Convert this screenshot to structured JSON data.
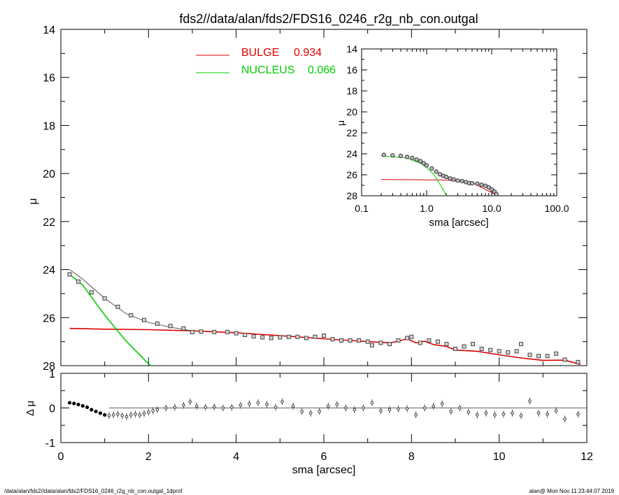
{
  "title": "fds2//data/alan/fds2/FDS16_0246_r2g_nb_con.outgal",
  "footer": {
    "left": "/data/alan/fds2//data/alan/fds2/FDS16_0246_r2g_nb_con.outgal_1dprof",
    "right": "alan@  Mon Nov 11 23:44:07 2019"
  },
  "colors": {
    "bulge": "#dd0000",
    "nucleus": "#00cc00",
    "total": "#555555",
    "data": "#444444"
  },
  "chart_data": [
    {
      "type": "line",
      "panel": "main",
      "xlabel": "sma [arcsec]",
      "ylabel": "μ",
      "xlim": [
        0,
        12
      ],
      "ylim": [
        28,
        14
      ],
      "y_inverted": true,
      "xticks": [
        "0",
        "2",
        "4",
        "6",
        "8",
        "10",
        "12"
      ],
      "yticks": [
        "14",
        "16",
        "18",
        "20",
        "22",
        "24",
        "26",
        "28"
      ],
      "legend": {
        "placement": "top-center",
        "entries": [
          {
            "label": "BULGE",
            "value": "0.934",
            "color": "#dd0000"
          },
          {
            "label": "NUCLEUS",
            "value": "0.066",
            "color": "#00cc00"
          }
        ]
      },
      "series": [
        {
          "name": "BULGE",
          "color": "#dd0000",
          "x": [
            0.2,
            1,
            2,
            3,
            4,
            5,
            6,
            7,
            7.5,
            7.7,
            7.9,
            8.1,
            8.3,
            8.5,
            8.8,
            9,
            9.5,
            10,
            10.5,
            11,
            11.5,
            11.85
          ],
          "y": [
            26.45,
            26.48,
            26.5,
            26.55,
            26.63,
            26.75,
            26.88,
            27.0,
            27.05,
            26.98,
            26.88,
            27.05,
            26.98,
            27.12,
            27.2,
            27.35,
            27.4,
            27.55,
            27.68,
            27.78,
            27.77,
            27.95
          ]
        },
        {
          "name": "NUCLEUS",
          "color": "#00cc00",
          "x": [
            0.2,
            0.5,
            1.0,
            1.5,
            2.0,
            2.05
          ],
          "y": [
            24.2,
            24.65,
            25.9,
            27.0,
            27.92,
            28.0
          ]
        },
        {
          "role": "total model",
          "color": "#555555",
          "x": [
            0.2,
            0.5,
            1.0,
            1.5,
            2.0,
            2.5,
            3.0
          ],
          "y": [
            24.0,
            24.4,
            25.2,
            25.85,
            26.2,
            26.4,
            26.55
          ]
        },
        {
          "role": "observed",
          "marker": "square",
          "x": [
            0.2,
            0.4,
            0.7,
            1.0,
            1.3,
            1.6,
            1.9,
            2.2,
            2.5,
            2.8,
            3.0,
            3.2,
            3.5,
            3.8,
            4.0,
            4.2,
            4.4,
            4.6,
            4.8,
            5.0,
            5.2,
            5.4,
            5.6,
            5.8,
            6.0,
            6.2,
            6.4,
            6.6,
            6.8,
            7.0,
            7.1,
            7.3,
            7.5,
            7.7,
            7.9,
            8.0,
            8.2,
            8.4,
            8.6,
            8.8,
            9.0,
            9.2,
            9.4,
            9.6,
            9.8,
            10.0,
            10.2,
            10.4,
            10.5,
            10.7,
            10.9,
            11.1,
            11.3,
            11.5,
            11.8
          ],
          "y": [
            24.2,
            24.5,
            24.95,
            25.2,
            25.55,
            25.9,
            26.1,
            26.25,
            26.35,
            26.45,
            26.6,
            26.58,
            26.6,
            26.6,
            26.65,
            26.72,
            26.78,
            26.82,
            26.85,
            26.82,
            26.8,
            26.8,
            26.85,
            26.8,
            26.75,
            26.9,
            26.95,
            26.95,
            26.95,
            27.0,
            27.15,
            27.05,
            27.1,
            26.95,
            26.85,
            26.8,
            27.05,
            26.95,
            27.0,
            27.1,
            27.3,
            27.2,
            27.1,
            27.3,
            27.35,
            27.4,
            27.45,
            27.4,
            27.1,
            27.55,
            27.6,
            27.6,
            27.5,
            27.75,
            27.85
          ]
        }
      ]
    },
    {
      "type": "scatter",
      "panel": "residual",
      "ylabel": "Δ μ",
      "xlim": [
        0,
        12
      ],
      "ylim": [
        -1,
        1
      ],
      "yticks": [
        "1",
        "0",
        "-1"
      ],
      "zero_line_from_x": 1.1,
      "series": [
        {
          "role": "residuals",
          "x": [
            0.2,
            0.3,
            0.4,
            0.5,
            0.6,
            0.7,
            0.8,
            0.9,
            1.0,
            1.1,
            1.2,
            1.3,
            1.4,
            1.5,
            1.6,
            1.7,
            1.8,
            1.9,
            2.0,
            2.1,
            2.2,
            2.4,
            2.6,
            2.8,
            2.95,
            3.1,
            3.3,
            3.5,
            3.7,
            3.9,
            4.1,
            4.3,
            4.5,
            4.7,
            4.9,
            5.05,
            5.3,
            5.5,
            5.7,
            5.9,
            6.1,
            6.3,
            6.5,
            6.7,
            6.9,
            7.1,
            7.3,
            7.5,
            7.7,
            7.9,
            8.1,
            8.3,
            8.5,
            8.7,
            8.9,
            9.1,
            9.3,
            9.5,
            9.7,
            9.9,
            10.1,
            10.3,
            10.5,
            10.7,
            10.9,
            11.1,
            11.3,
            11.5,
            11.8
          ],
          "y": [
            0.15,
            0.13,
            0.1,
            0.06,
            0.02,
            -0.05,
            -0.1,
            -0.15,
            -0.2,
            -0.22,
            -0.2,
            -0.18,
            -0.22,
            -0.25,
            -0.2,
            -0.18,
            -0.2,
            -0.16,
            -0.12,
            -0.08,
            -0.05,
            0.0,
            0.02,
            0.08,
            0.18,
            0.05,
            0.02,
            0.03,
            0.0,
            0.02,
            0.08,
            0.12,
            0.15,
            0.1,
            0.02,
            0.18,
            0.05,
            -0.1,
            -0.15,
            -0.1,
            0.05,
            0.1,
            0.0,
            -0.05,
            0.0,
            0.15,
            -0.08,
            -0.05,
            -0.03,
            -0.02,
            -0.2,
            0.0,
            0.05,
            0.12,
            -0.1,
            0.0,
            -0.12,
            -0.2,
            -0.15,
            -0.2,
            -0.18,
            -0.15,
            -0.22,
            0.2,
            -0.15,
            -0.18,
            -0.08,
            -0.32,
            -0.18
          ]
        }
      ]
    },
    {
      "type": "line",
      "panel": "inset",
      "xlabel": "sma [arcsec]",
      "ylabel": "μ",
      "x_scale": "log",
      "xlim": [
        0.1,
        100
      ],
      "ylim": [
        28,
        14
      ],
      "y_inverted": true,
      "xticks": [
        "0.1",
        "1.0",
        "10.0",
        "100.0"
      ],
      "yticks": [
        "14",
        "16",
        "18",
        "20",
        "22",
        "24",
        "26",
        "28"
      ],
      "series": [
        {
          "name": "BULGE",
          "color": "#dd0000",
          "x": [
            0.2,
            0.5,
            1,
            2,
            5,
            12
          ],
          "y": [
            26.45,
            26.47,
            26.48,
            26.5,
            26.75,
            27.95
          ]
        },
        {
          "name": "NUCLEUS",
          "color": "#00cc00",
          "x": [
            0.2,
            0.5,
            0.8,
            1.0,
            1.3,
            1.6,
            2.0
          ],
          "y": [
            24.2,
            24.4,
            24.9,
            25.3,
            26.0,
            26.9,
            27.95
          ]
        },
        {
          "role": "observed",
          "marker": "circle",
          "x": [
            0.22,
            0.3,
            0.4,
            0.5,
            0.6,
            0.7,
            0.8,
            0.9,
            1.0,
            1.2,
            1.4,
            1.6,
            1.8,
            2.0,
            2.3,
            2.6,
            3.0,
            3.5,
            4.0,
            4.5,
            5.0,
            6.0,
            7.0,
            8.0,
            9.0,
            10.0,
            11.0,
            11.8
          ],
          "y": [
            24.1,
            24.15,
            24.2,
            24.3,
            24.4,
            24.55,
            24.7,
            24.9,
            25.1,
            25.4,
            25.7,
            25.95,
            26.1,
            26.2,
            26.35,
            26.45,
            26.55,
            26.6,
            26.7,
            26.8,
            26.8,
            26.85,
            26.95,
            27.05,
            27.2,
            27.4,
            27.6,
            27.85
          ]
        }
      ]
    }
  ]
}
